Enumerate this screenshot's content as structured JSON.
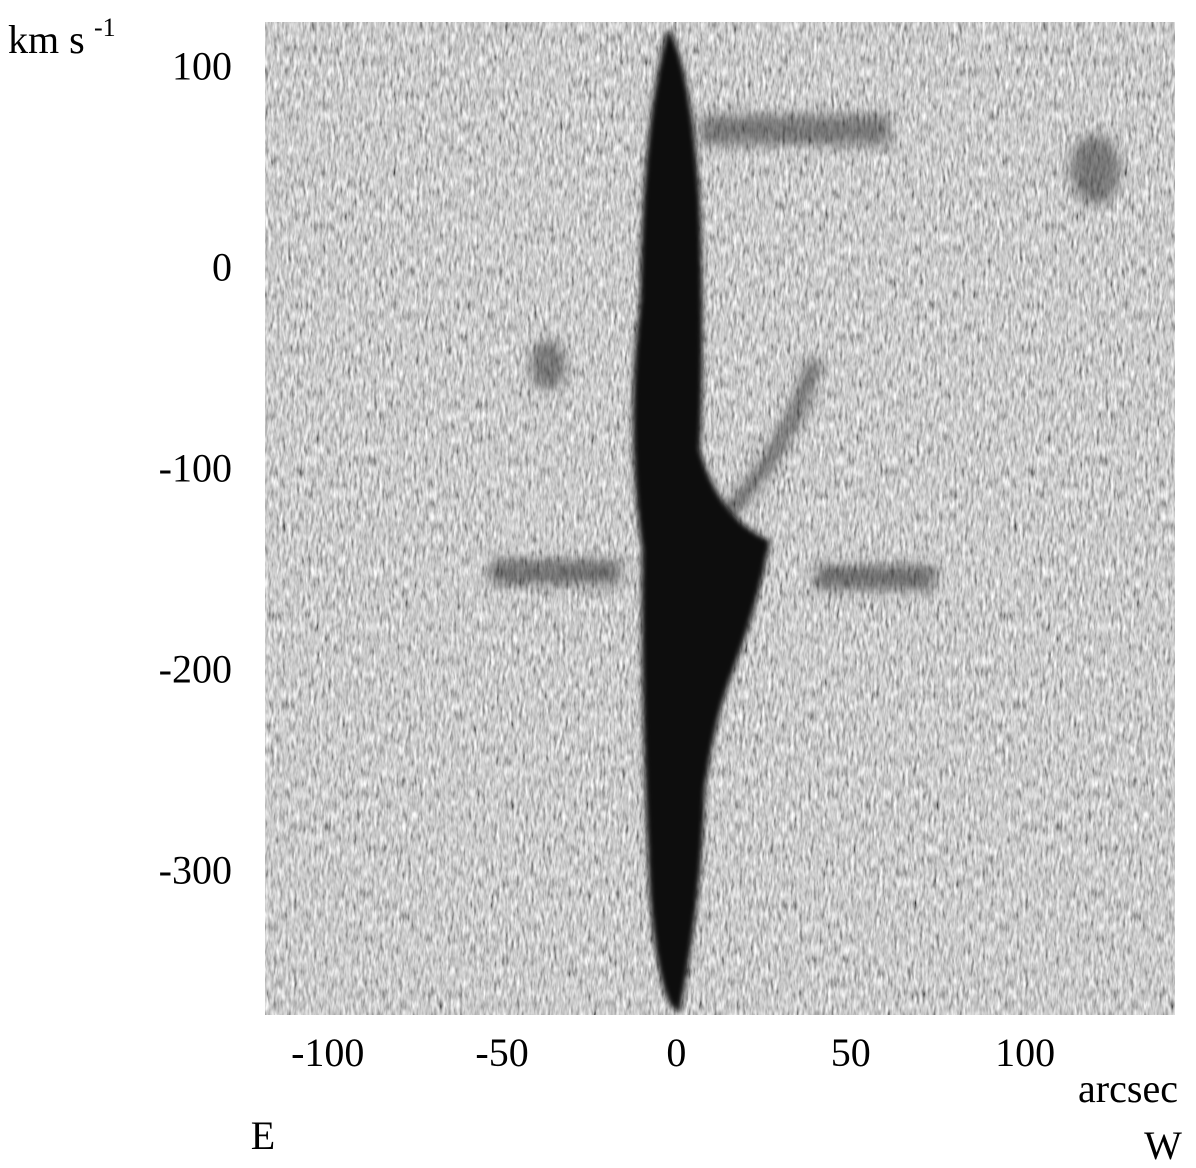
{
  "chart_data": {
    "type": "image",
    "y_label": "km s",
    "y_label_sup": "-1",
    "x_label": "arcsec",
    "left_label": "E",
    "right_label": "W",
    "xlim": [
      -118,
      143
    ],
    "xticks": [
      -100,
      -50,
      0,
      50,
      100
    ],
    "ylim": [
      -370,
      124
    ],
    "yticks": [
      100,
      0,
      -100,
      -200,
      -300
    ]
  }
}
